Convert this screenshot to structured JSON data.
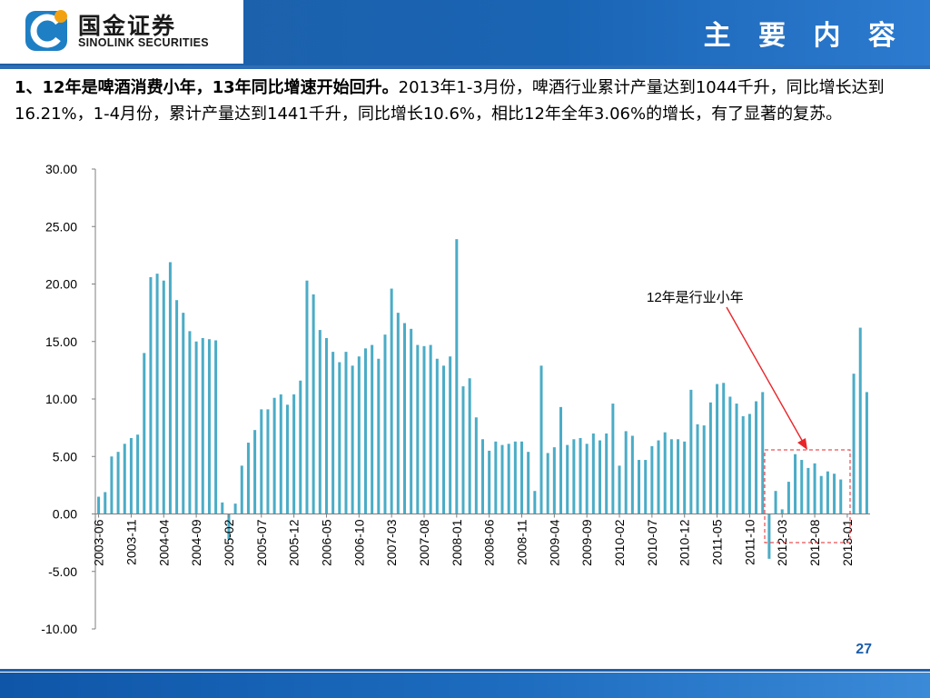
{
  "header": {
    "logo_cn": "国金证券",
    "logo_en": "SINOLINK SECURITIES",
    "title": "主 要 内 容"
  },
  "body": {
    "bold_lead": "1、12年是啤酒消费小年，13年同比增速开始回升。",
    "text": "2013年1-3月份，啤酒行业累计产量达到1044千升，同比增长达到16.21%，1-4月份，累计产量达到1441千升，同比增长10.6%，相比12年全年3.06%的增长，有了显著的复苏。"
  },
  "annotation": {
    "label": "12年是行业小年"
  },
  "page_number": "27",
  "colors": {
    "bar": "#4bacc6",
    "header": "#1a64b4",
    "annotation_arrow": "#e8262a",
    "highlight_box": "#e8262a",
    "page_number": "#1a5dab"
  },
  "chart_data": {
    "type": "bar",
    "y_ticks": [
      "30.00",
      "25.00",
      "20.00",
      "15.00",
      "10.00",
      "5.00",
      "0.00",
      "-5.00",
      "-10.00"
    ],
    "ylim": [
      -10,
      30
    ],
    "x_tick_labels": [
      "2003-06",
      "2003-11",
      "2004-04",
      "2004-09",
      "2005-02",
      "2005-07",
      "2005-12",
      "2006-05",
      "2006-10",
      "2007-03",
      "2007-08",
      "2008-01",
      "2008-06",
      "2008-11",
      "2009-04",
      "2009-09",
      "2010-02",
      "2010-07",
      "2010-12",
      "2011-05",
      "2011-10",
      "2012-03",
      "2012-08",
      "2013-01"
    ],
    "x_start": "2003-06",
    "x_end": "2013-04",
    "values": [
      1.5,
      1.9,
      5.0,
      5.4,
      6.1,
      6.6,
      6.9,
      14.0,
      20.6,
      20.9,
      20.3,
      21.9,
      18.6,
      17.5,
      15.9,
      15.0,
      15.3,
      15.2,
      15.1,
      1.0,
      -2.2,
      0.9,
      4.2,
      6.2,
      7.3,
      9.1,
      9.1,
      10.1,
      10.4,
      9.5,
      10.4,
      11.6,
      20.3,
      19.1,
      16.0,
      15.3,
      14.1,
      13.2,
      14.1,
      12.9,
      13.7,
      14.4,
      14.7,
      13.5,
      15.6,
      19.6,
      17.5,
      16.6,
      16.1,
      14.7,
      14.6,
      14.7,
      13.5,
      12.9,
      13.7,
      23.9,
      11.1,
      11.8,
      8.4,
      6.5,
      5.5,
      6.3,
      6.0,
      6.1,
      6.3,
      6.3,
      5.4,
      2.0,
      12.9,
      5.3,
      5.8,
      9.3,
      6.0,
      6.5,
      6.6,
      6.1,
      7.0,
      6.4,
      7.0,
      9.6,
      4.2,
      7.2,
      6.8,
      4.7,
      4.7,
      5.9,
      6.4,
      7.1,
      6.5,
      6.5,
      6.3,
      10.8,
      7.8,
      7.7,
      9.7,
      11.3,
      11.4,
      10.2,
      9.6,
      8.5,
      8.7,
      9.8,
      10.6,
      -3.9,
      2.0,
      0.4,
      2.8,
      5.2,
      4.7,
      4.0,
      4.4,
      3.3,
      3.7,
      3.5,
      3.0,
      0.0,
      12.2,
      16.2,
      10.6
    ]
  }
}
